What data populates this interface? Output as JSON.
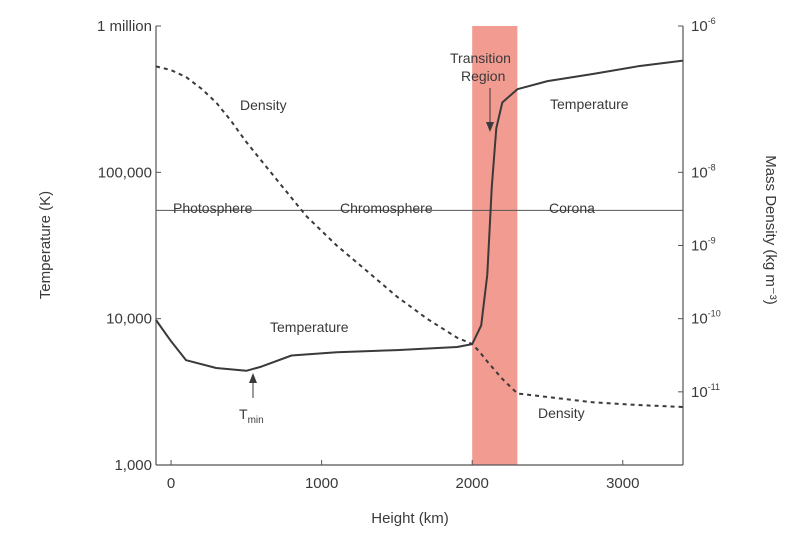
{
  "chart_data": {
    "type": "line",
    "xlabel": "Height (km)",
    "ylabel_left": "Temperature (K)",
    "ylabel_right": "Mass Density (kg m⁻³)",
    "xlim": [
      -100,
      3400
    ],
    "ylim_left": [
      1000,
      1000000
    ],
    "ylim_right": [
      1e-12,
      1e-06
    ],
    "yscale": "log",
    "x_ticks": [
      {
        "value": 0,
        "label": "0"
      },
      {
        "value": 1000,
        "label": "1000"
      },
      {
        "value": 2000,
        "label": "2000"
      },
      {
        "value": 3000,
        "label": "3000"
      }
    ],
    "y_ticks_left": [
      {
        "value": 1000,
        "label": "1,000"
      },
      {
        "value": 10000,
        "label": "10,000"
      },
      {
        "value": 100000,
        "label": "100,000"
      },
      {
        "value": 1000000,
        "label": "1 million"
      }
    ],
    "y_ticks_right": [
      {
        "value": 1e-06,
        "base": "10",
        "exp": "-6"
      },
      {
        "value": 1e-08,
        "base": "10",
        "exp": "-8"
      },
      {
        "value": 1e-09,
        "base": "10",
        "exp": "-9"
      },
      {
        "value": 1e-10,
        "base": "10",
        "exp": "-10"
      },
      {
        "value": 1e-11,
        "base": "10",
        "exp": "-11"
      }
    ],
    "series": [
      {
        "name": "Temperature",
        "axis": "left",
        "style": "solid",
        "x": [
          -100,
          0,
          100,
          300,
          500,
          600,
          800,
          1100,
          1500,
          1900,
          2000,
          2060,
          2100,
          2130,
          2160,
          2200,
          2300,
          2500,
          2800,
          3100,
          3400
        ],
        "y": [
          9800,
          7000,
          5200,
          4600,
          4400,
          4700,
          5600,
          5900,
          6100,
          6400,
          6700,
          9000,
          20000,
          80000,
          200000,
          300000,
          370000,
          420000,
          470000,
          530000,
          580000
        ]
      },
      {
        "name": "Density",
        "axis": "right",
        "style": "dashed",
        "x": [
          -100,
          0,
          100,
          200,
          300,
          400,
          500,
          700,
          900,
          1100,
          1300,
          1500,
          1700,
          1900,
          2000,
          2050,
          2100,
          2200,
          2300,
          2500,
          2800,
          3100,
          3400
        ],
        "y": [
          2.8e-07,
          2.5e-07,
          2e-07,
          1.4e-07,
          9e-08,
          5e-08,
          2.6e-08,
          8e-09,
          2.5e-09,
          1e-09,
          4.5e-10,
          2e-10,
          1e-10,
          5.5e-11,
          4.5e-11,
          3.5e-11,
          2.6e-11,
          1.5e-11,
          9.5e-12,
          8.5e-12,
          7.2e-12,
          6.6e-12,
          6.2e-12
        ]
      }
    ],
    "reference_line": {
      "temperature": 55000
    },
    "transition_band": {
      "x_start": 2000,
      "x_end": 2300,
      "color": "#f08a7e"
    },
    "annotations": [
      {
        "text": "Density",
        "near": "density-upper"
      },
      {
        "text": "Density",
        "near": "density-lower"
      },
      {
        "text": "Temperature",
        "near": "temperature-middle"
      },
      {
        "text": "Temperature",
        "near": "temperature-upper"
      },
      {
        "text": "Photosphere",
        "near": "reference-line"
      },
      {
        "text": "Chromosphere",
        "near": "reference-line"
      },
      {
        "text": "Corona",
        "near": "reference-line"
      },
      {
        "text": "Transition",
        "near": "band-top"
      },
      {
        "text": "Region",
        "near": "band-top"
      }
    ],
    "tmin": {
      "x": 530,
      "base": "T",
      "sub": "min"
    },
    "colors": {
      "line": "#3a3a3a",
      "axis": "#555555",
      "band": "#f08a7e"
    },
    "grid": false
  }
}
